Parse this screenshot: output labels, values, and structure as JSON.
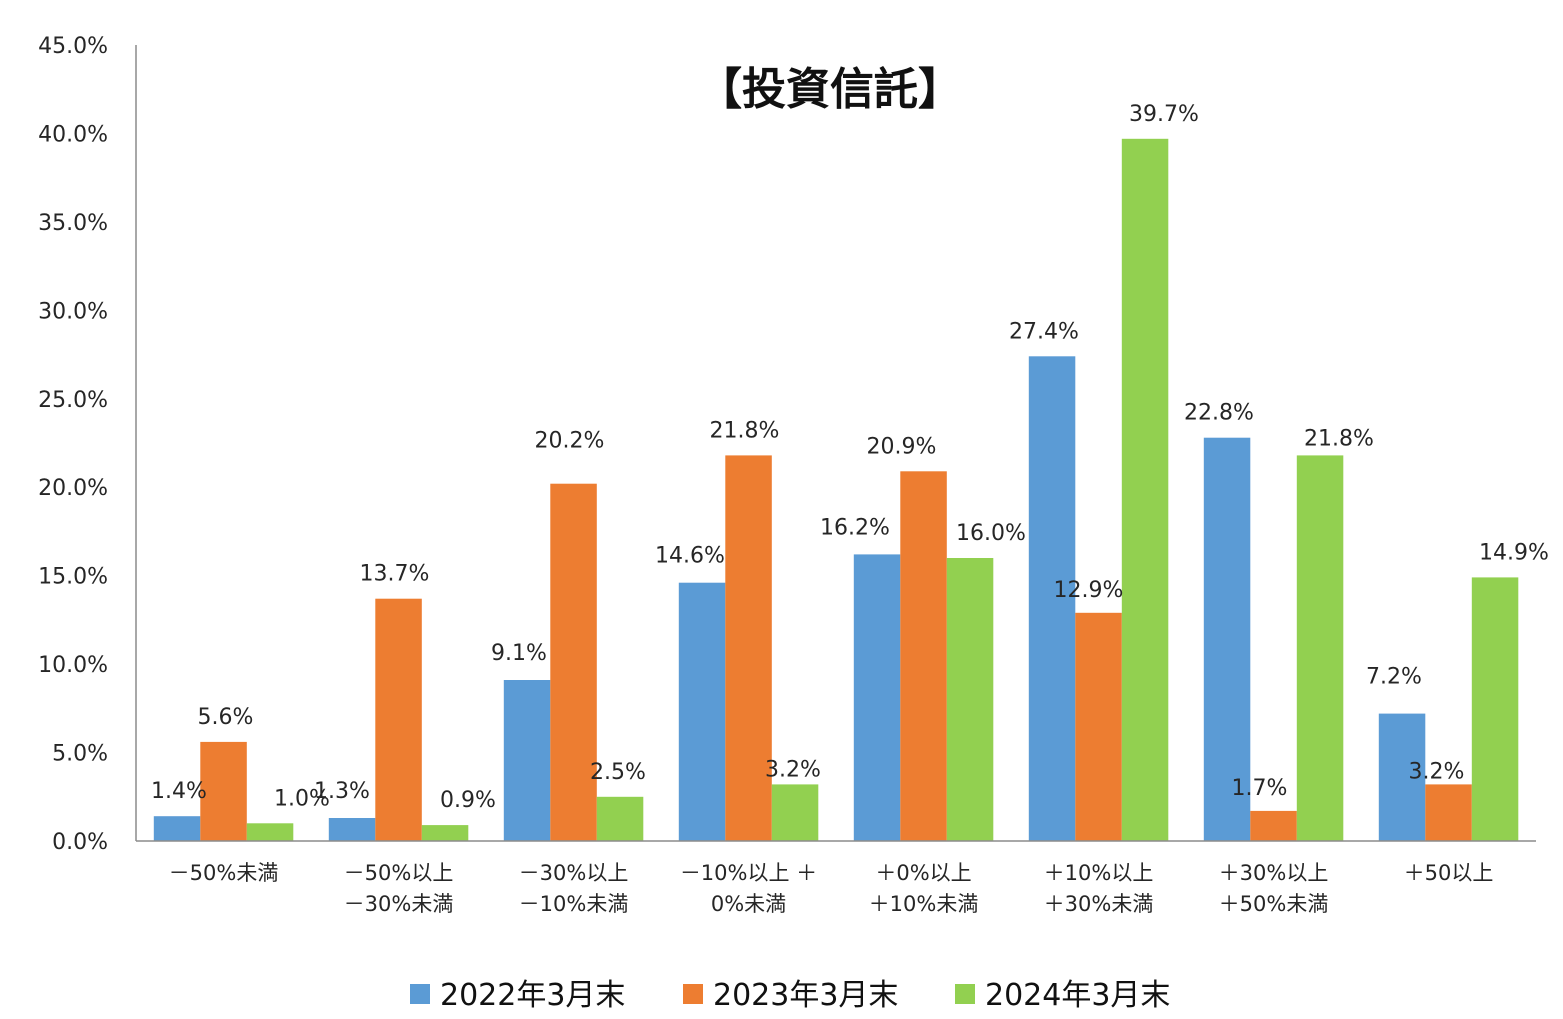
{
  "chart_data": {
    "type": "bar",
    "title": "【投資信託】",
    "xlabel": "",
    "ylabel": "",
    "ylim": [
      0,
      45
    ],
    "yticks": [
      "0.0%",
      "5.0%",
      "10.0%",
      "15.0%",
      "20.0%",
      "25.0%",
      "30.0%",
      "35.0%",
      "40.0%",
      "45.0%"
    ],
    "grid": false,
    "legend_position": "bottom",
    "categories": [
      "－50%未満",
      "－50%以上\n－30%未満",
      "－30%以上\n－10%未満",
      "－10%以上 ＋\n0%未満",
      "＋0%以上\n＋10%未満",
      "＋10%以上\n＋30%未満",
      "＋30%以上\n＋50%未満",
      "＋50以上"
    ],
    "series": [
      {
        "name": "2022年3月末",
        "color": "#5b9bd5",
        "values": [
          1.4,
          1.3,
          9.1,
          14.6,
          16.2,
          27.4,
          22.8,
          7.2
        ],
        "labels": [
          "1.4%",
          "1.3%",
          "9.1%",
          "14.6%",
          "16.2%",
          "27.4%",
          "22.8%",
          "7.2%"
        ]
      },
      {
        "name": "2023年3月末",
        "color": "#ed7d31",
        "values": [
          5.6,
          13.7,
          20.2,
          21.8,
          20.9,
          12.9,
          1.7,
          3.2
        ],
        "labels": [
          "5.6%",
          "13.7%",
          "20.2%",
          "21.8%",
          "20.9%",
          "12.9%",
          "1.7%",
          "3.2%"
        ]
      },
      {
        "name": "2024年3月末",
        "color": "#92d050",
        "values": [
          1.0,
          0.9,
          2.5,
          3.2,
          16.0,
          39.7,
          21.8,
          14.9
        ],
        "labels": [
          "1.0%",
          "0.9%",
          "2.5%",
          "3.2%",
          "16.0%",
          "39.7%",
          "21.8%",
          "14.9%"
        ]
      }
    ]
  }
}
